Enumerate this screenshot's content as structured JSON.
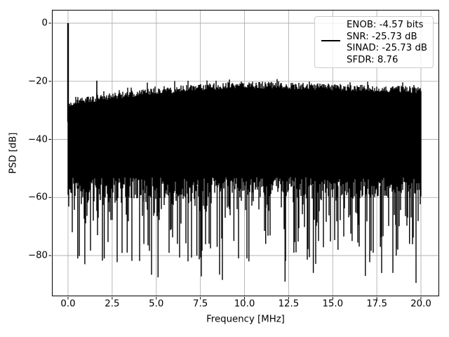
{
  "chart_data": {
    "type": "line",
    "title": "",
    "xlabel": "Frequency [MHz]",
    "ylabel": "PSD [dB]",
    "xlim": [
      -0.91,
      21.03
    ],
    "ylim": [
      -94.0,
      4.6
    ],
    "x_ticks": [
      0,
      2.5,
      5,
      7.5,
      10,
      12.5,
      15,
      17.5,
      20
    ],
    "x_tick_labels": [
      "0.0",
      "2.5",
      "5.0",
      "7.5",
      "10.0",
      "12.5",
      "15.0",
      "17.5",
      "20.0"
    ],
    "y_ticks": [
      0,
      -20,
      -40,
      -60,
      -80
    ],
    "y_tick_labels": [
      "0",
      "−20",
      "−40",
      "−60",
      "−80"
    ],
    "grid": true,
    "grid_color": "#b0b0b0",
    "line_color": "#000000",
    "background_color": "#ffffff",
    "legend": {
      "position": "upper right",
      "entries": [
        {
          "color": "#000000",
          "label_lines": [
            "ENOB: -4.57 bits",
            "SNR: -25.73 dB",
            "SINAD: -25.73 dB",
            "SFDR: 8.76"
          ]
        }
      ]
    },
    "metrics": {
      "enob_bits": -4.57,
      "snr_db": -25.73,
      "sinad_db": -25.73,
      "sfdr": 8.76
    },
    "signal": {
      "fundamental": {
        "freq_mhz": 0.0,
        "level_db": 0.0
      },
      "spur": {
        "freq_mhz": 1.63,
        "level_db": -19.8
      },
      "noise_band": {
        "seed": 1337,
        "freq_range_mhz": [
          0,
          20
        ],
        "top_envelope_db": [
          [
            0,
            -28.2
          ],
          [
            0.5,
            -27.2
          ],
          [
            1,
            -26.6
          ],
          [
            2.5,
            -25.2
          ],
          [
            5,
            -23.6
          ],
          [
            7.5,
            -22.2
          ],
          [
            10,
            -21.4
          ],
          [
            12.5,
            -21.7
          ],
          [
            15,
            -22.2
          ],
          [
            17.5,
            -22.7
          ],
          [
            20,
            -23.2
          ]
        ],
        "top_jitter_db": 2.4,
        "solid_bottom_db": [
          -53,
          -60.5
        ],
        "spike_probability": 0.55,
        "spike_max_extra_db": 30
      },
      "deep_nulls": [
        [
          0.55,
          -81
        ],
        [
          0.95,
          -83
        ],
        [
          2.05,
          -81
        ],
        [
          3.35,
          -79
        ],
        [
          4.3,
          -76
        ],
        [
          5.1,
          -87.5
        ],
        [
          6.2,
          -76
        ],
        [
          7.3,
          -80
        ],
        [
          8.45,
          -77
        ],
        [
          9.4,
          -75
        ],
        [
          10.25,
          -82
        ],
        [
          11.2,
          -76
        ],
        [
          12.3,
          -89
        ],
        [
          12.8,
          -79
        ],
        [
          13.9,
          -86
        ],
        [
          15.3,
          -78
        ],
        [
          16.1,
          -75
        ],
        [
          16.85,
          -87
        ],
        [
          17.7,
          -77
        ],
        [
          18.6,
          -80
        ],
        [
          19.35,
          -76
        ]
      ]
    }
  }
}
